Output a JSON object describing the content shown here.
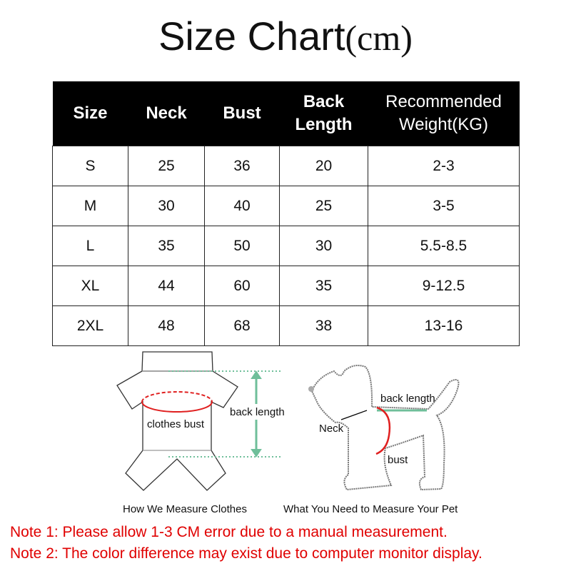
{
  "title": {
    "main": "Size Chart",
    "unit": "(cm)"
  },
  "table": {
    "headers": [
      [
        "Size"
      ],
      [
        "Neck"
      ],
      [
        "Bust"
      ],
      [
        "Back",
        "Length"
      ],
      [
        "Recommended",
        "Weight(KG)"
      ]
    ],
    "rows": [
      [
        "S",
        "25",
        "36",
        "20",
        "2-3"
      ],
      [
        "M",
        "30",
        "40",
        "25",
        "3-5"
      ],
      [
        "L",
        "35",
        "50",
        "30",
        "5.5-8.5"
      ],
      [
        "XL",
        "44",
        "60",
        "35",
        "9-12.5"
      ],
      [
        "2XL",
        "48",
        "68",
        "38",
        "13-16"
      ]
    ]
  },
  "clothes_diagram": {
    "bust_label": "clothes bust",
    "back_label": "back length",
    "caption": "How We Measure Clothes"
  },
  "pet_diagram": {
    "neck_label": "Neck",
    "back_label": "back length",
    "bust_label": "bust",
    "caption": "What You Need to Measure Your Pet"
  },
  "notes": [
    "Note 1: Please allow 1-3 CM error due to a manual measurement.",
    "Note 2: The color difference may exist due to computer monitor display."
  ],
  "colors": {
    "header_bg": "#000000",
    "note": "#e00000",
    "measure_red": "#e02020",
    "measure_green": "#6fbf9a"
  }
}
